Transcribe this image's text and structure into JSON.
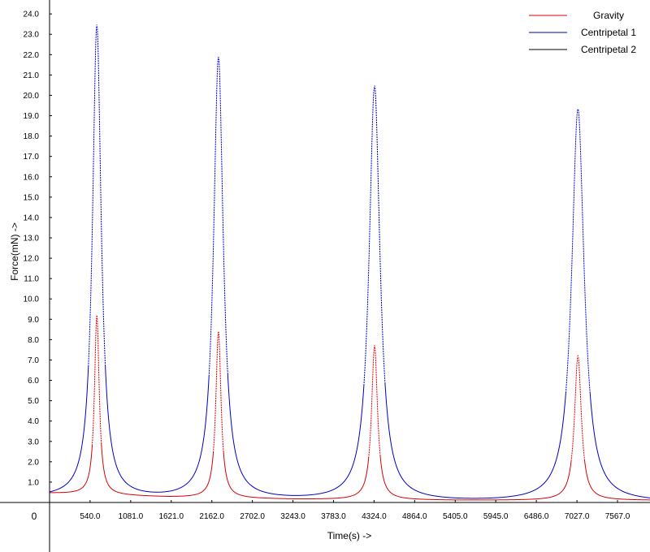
{
  "chart_data": {
    "type": "line",
    "xlabel": "Time(s) ->",
    "ylabel": "Force(mN) ->",
    "origin_label": "0",
    "xlim": [
      0,
      8000
    ],
    "ylim": [
      0,
      24
    ],
    "x_ticks": [
      540.0,
      1081.0,
      1621.0,
      2162.0,
      2702.0,
      3243.0,
      3783.0,
      4324.0,
      4864.0,
      5405.0,
      5945.0,
      6486.0,
      7027.0,
      7567.0
    ],
    "x_tick_labels": [
      "540.0",
      "1081.0",
      "1621.0",
      "2162.0",
      "2702.0",
      "3243.0",
      "3783.0",
      "4324.0",
      "4864.0",
      "5405.0",
      "5945.0",
      "6486.0",
      "7027.0",
      "7567.0"
    ],
    "y_ticks": [
      1,
      2,
      3,
      4,
      5,
      6,
      7,
      8,
      9,
      10,
      11,
      12,
      13,
      14,
      15,
      16,
      17,
      18,
      19,
      20,
      21,
      22,
      23,
      24
    ],
    "y_tick_labels": [
      "1.0",
      "2.0",
      "3.0",
      "4.0",
      "5.0",
      "6.0",
      "7.0",
      "8.0",
      "9.0",
      "10.0",
      "11.0",
      "12.0",
      "13.0",
      "14.0",
      "15.0",
      "16.0",
      "17.0",
      "18.0",
      "19.0",
      "20.0",
      "21.0",
      "22.0",
      "23.0",
      "24.0"
    ],
    "grid": false,
    "legend_position": "top-right",
    "series": [
      {
        "name": "Gravity",
        "color": "#d40000",
        "baseline": [
          [
            0,
            0.45
          ],
          [
            1600,
            0.25
          ],
          [
            3200,
            0.15
          ],
          [
            5400,
            0.1
          ],
          [
            8000,
            0.1
          ]
        ],
        "peaks": [
          {
            "x": 630,
            "y": 9.2,
            "width": 38
          },
          {
            "x": 2250,
            "y": 8.4,
            "width": 42
          },
          {
            "x": 4330,
            "y": 7.7,
            "width": 48
          },
          {
            "x": 7040,
            "y": 7.2,
            "width": 55
          }
        ]
      },
      {
        "name": "Centripetal 1",
        "color": "#0000c8",
        "baseline": [
          [
            0,
            0.2
          ],
          [
            1600,
            0.1
          ],
          [
            3200,
            0.05
          ],
          [
            5400,
            0.0
          ],
          [
            8000,
            0.0
          ]
        ],
        "peaks": [
          {
            "x": 630,
            "y": 23.4,
            "width": 70
          },
          {
            "x": 2250,
            "y": 21.8,
            "width": 78
          },
          {
            "x": 4330,
            "y": 20.4,
            "width": 88
          },
          {
            "x": 7040,
            "y": 19.3,
            "width": 100
          }
        ]
      },
      {
        "name": "Centripetal 2",
        "color": "#000000",
        "baseline": [
          [
            0,
            0.0
          ],
          [
            8000,
            0.0
          ]
        ],
        "peaks": []
      }
    ]
  }
}
